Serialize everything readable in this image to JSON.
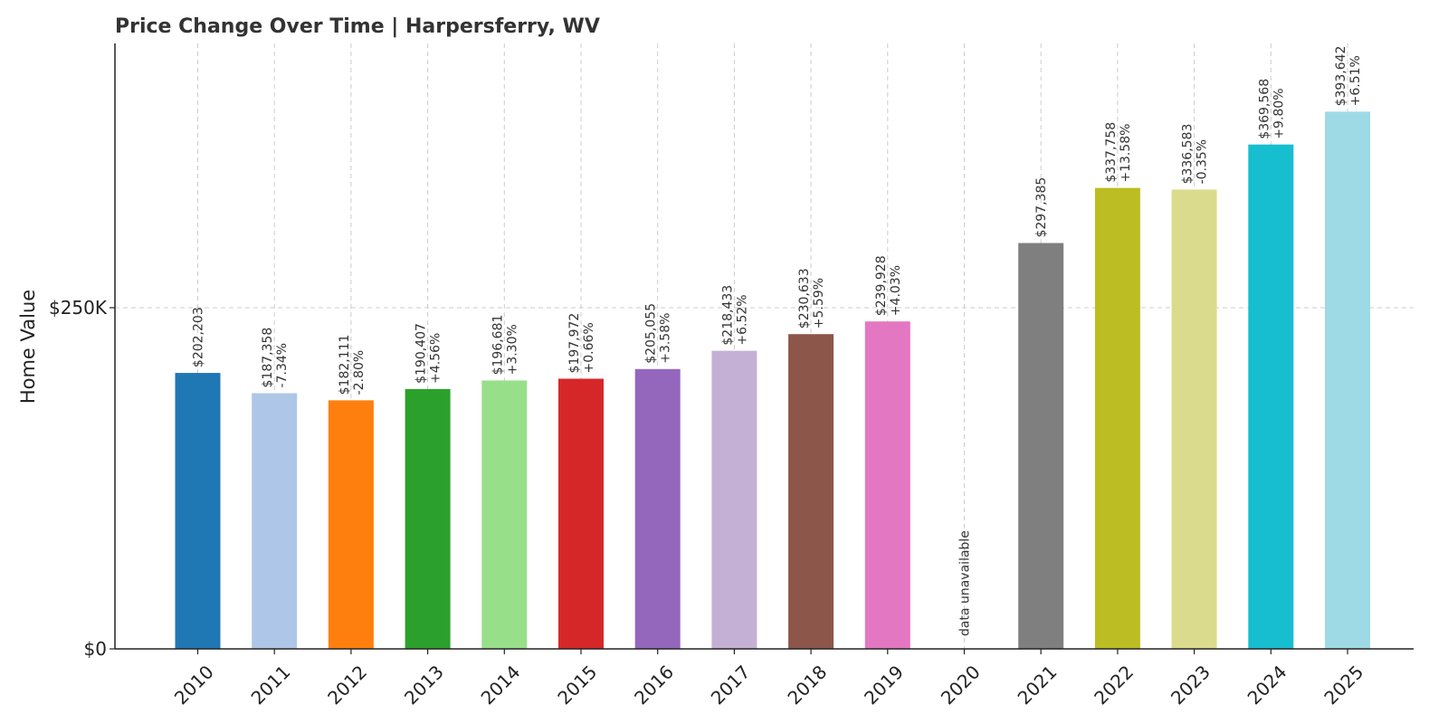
{
  "chart_data": {
    "type": "bar",
    "title": "Price Change Over Time | Harpersferry, WV",
    "xlabel": "",
    "ylabel": "Home Value",
    "ylim": [
      0,
      500000
    ],
    "yticks": [
      {
        "value": 0,
        "label": "$0"
      },
      {
        "value": 250000,
        "label": "$250K"
      }
    ],
    "grid": true,
    "categories": [
      "2010",
      "2011",
      "2012",
      "2013",
      "2014",
      "2015",
      "2016",
      "2017",
      "2018",
      "2019",
      "2020",
      "2021",
      "2022",
      "2023",
      "2024",
      "2025"
    ],
    "values": [
      202203,
      187358,
      182111,
      190407,
      196681,
      197972,
      205055,
      218433,
      230633,
      239928,
      null,
      297385,
      337758,
      336583,
      369568,
      393642
    ],
    "value_labels": [
      "$202,203",
      "$187,358",
      "$182,111",
      "$190,407",
      "$196,681",
      "$197,972",
      "$205,055",
      "$218,433",
      "$230,633",
      "$239,928",
      "",
      "$297,385",
      "$337,758",
      "$336,583",
      "$369,568",
      "$393,642"
    ],
    "change_labels": [
      "",
      "-7.34%",
      "-2.80%",
      "+4.56%",
      "+3.30%",
      "+0.66%",
      "+3.58%",
      "+6.52%",
      "+5.59%",
      "+4.03%",
      "",
      "",
      "+13.58%",
      "-0.35%",
      "+9.80%",
      "+6.51%"
    ],
    "missing_label": "data unavailable",
    "colors": [
      "#1f77b4",
      "#aec7e8",
      "#ff7f0e",
      "#2ca02c",
      "#98df8a",
      "#d62728",
      "#9467bd",
      "#c5b0d5",
      "#8c564b",
      "#e377c2",
      "#f7b6d2",
      "#7f7f7f",
      "#bcbd22",
      "#dbdb8d",
      "#17becf",
      "#9edae5"
    ]
  }
}
